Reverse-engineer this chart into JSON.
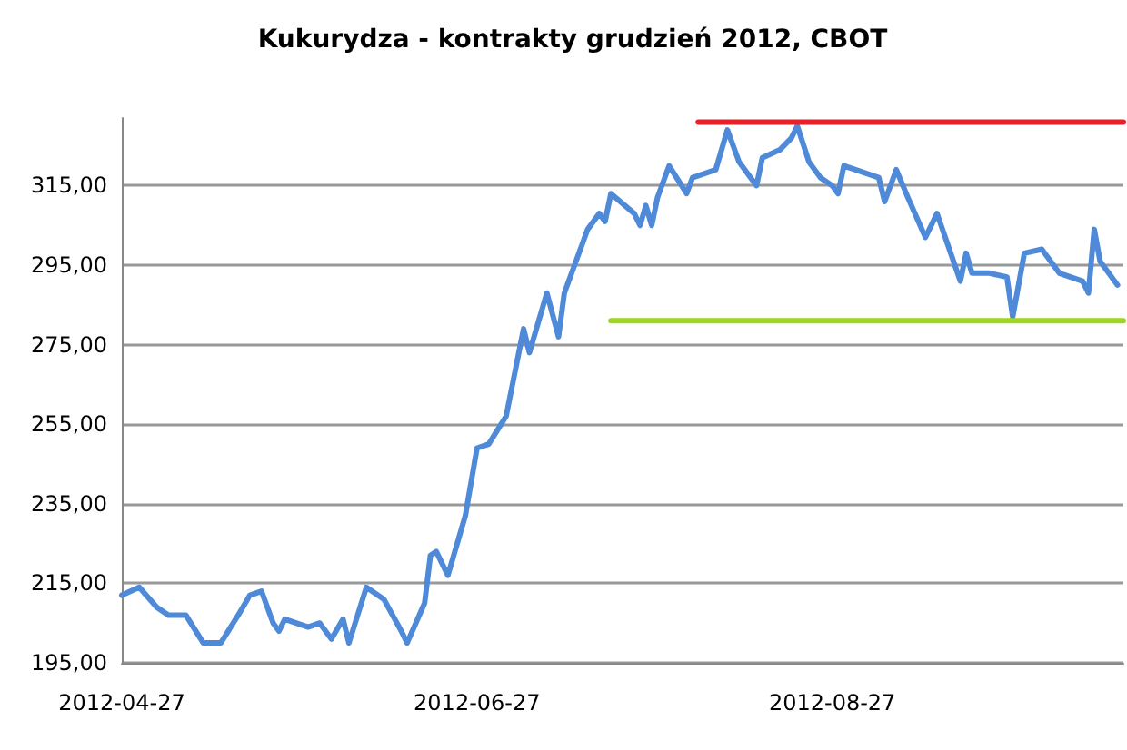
{
  "chart_data": {
    "type": "line",
    "title": "Kukurydza - kontrakty grudzień 2012, CBOT",
    "xlim": [
      "2012-04-27",
      "2012-10-16"
    ],
    "xticks": [
      "2012-04-27",
      "2012-06-27",
      "2012-08-27"
    ],
    "ylim": [
      195,
      332
    ],
    "yticks": [
      {
        "value": 195,
        "label": "195,00"
      },
      {
        "value": 215,
        "label": "215,00"
      },
      {
        "value": 235,
        "label": "235,00"
      },
      {
        "value": 255,
        "label": "255,00"
      },
      {
        "value": 275,
        "label": "275,00"
      },
      {
        "value": 295,
        "label": "295,00"
      },
      {
        "value": 315,
        "label": "315,00"
      }
    ],
    "grid": "y",
    "marker": "none",
    "line_style": "solid",
    "series": [
      {
        "color": "#4f8ad8",
        "x": [
          "2012-04-27",
          "2012-04-30",
          "2012-05-03",
          "2012-05-05",
          "2012-05-08",
          "2012-05-11",
          "2012-05-14",
          "2012-05-17",
          "2012-05-19",
          "2012-05-21",
          "2012-05-23",
          "2012-05-24",
          "2012-05-25",
          "2012-05-29",
          "2012-05-31",
          "2012-06-02",
          "2012-06-04",
          "2012-06-05",
          "2012-06-08",
          "2012-06-11",
          "2012-06-14",
          "2012-06-15",
          "2012-06-18",
          "2012-06-19",
          "2012-06-20",
          "2012-06-22",
          "2012-06-25",
          "2012-06-27",
          "2012-06-29",
          "2012-07-02",
          "2012-07-05",
          "2012-07-06",
          "2012-07-09",
          "2012-07-11",
          "2012-07-12",
          "2012-07-16",
          "2012-07-18",
          "2012-07-19",
          "2012-07-20",
          "2012-07-24",
          "2012-07-25",
          "2012-07-26",
          "2012-07-27",
          "2012-07-28",
          "2012-07-30",
          "2012-08-02",
          "2012-08-03",
          "2012-08-07",
          "2012-08-09",
          "2012-08-11",
          "2012-08-14",
          "2012-08-15",
          "2012-08-18",
          "2012-08-20",
          "2012-08-21",
          "2012-08-23",
          "2012-08-25",
          "2012-08-27",
          "2012-08-28",
          "2012-08-29",
          "2012-08-31",
          "2012-09-04",
          "2012-09-05",
          "2012-09-07",
          "2012-09-09",
          "2012-09-12",
          "2012-09-14",
          "2012-09-18",
          "2012-09-19",
          "2012-09-20",
          "2012-09-23",
          "2012-09-26",
          "2012-09-27",
          "2012-09-29",
          "2012-10-02",
          "2012-10-05",
          "2012-10-09",
          "2012-10-10",
          "2012-10-11",
          "2012-10-12",
          "2012-10-15"
        ],
        "values": [
          212,
          214,
          209,
          207,
          207,
          200,
          200,
          207,
          212,
          213,
          205,
          203,
          206,
          204,
          205,
          201,
          206,
          200,
          214,
          211,
          203,
          200,
          210,
          222,
          223,
          217,
          232,
          249,
          250,
          257,
          279,
          273,
          288,
          277,
          288,
          304,
          308,
          306,
          313,
          308,
          305,
          310,
          305,
          312,
          320,
          313,
          317,
          319,
          329,
          321,
          315,
          322,
          324,
          327,
          330,
          321,
          317,
          315,
          313,
          320,
          319,
          317,
          311,
          319,
          312,
          302,
          308,
          291,
          298,
          293,
          293,
          292,
          282,
          298,
          299,
          293,
          291,
          288,
          304,
          296,
          290
        ]
      },
      {
        "color": "#e8202a",
        "x": [
          "2012-08-04",
          "2012-10-16"
        ],
        "values": [
          331,
          331
        ]
      },
      {
        "color": "#9ed621",
        "x": [
          "2012-07-20",
          "2012-10-16"
        ],
        "values": [
          281,
          281
        ]
      }
    ]
  }
}
